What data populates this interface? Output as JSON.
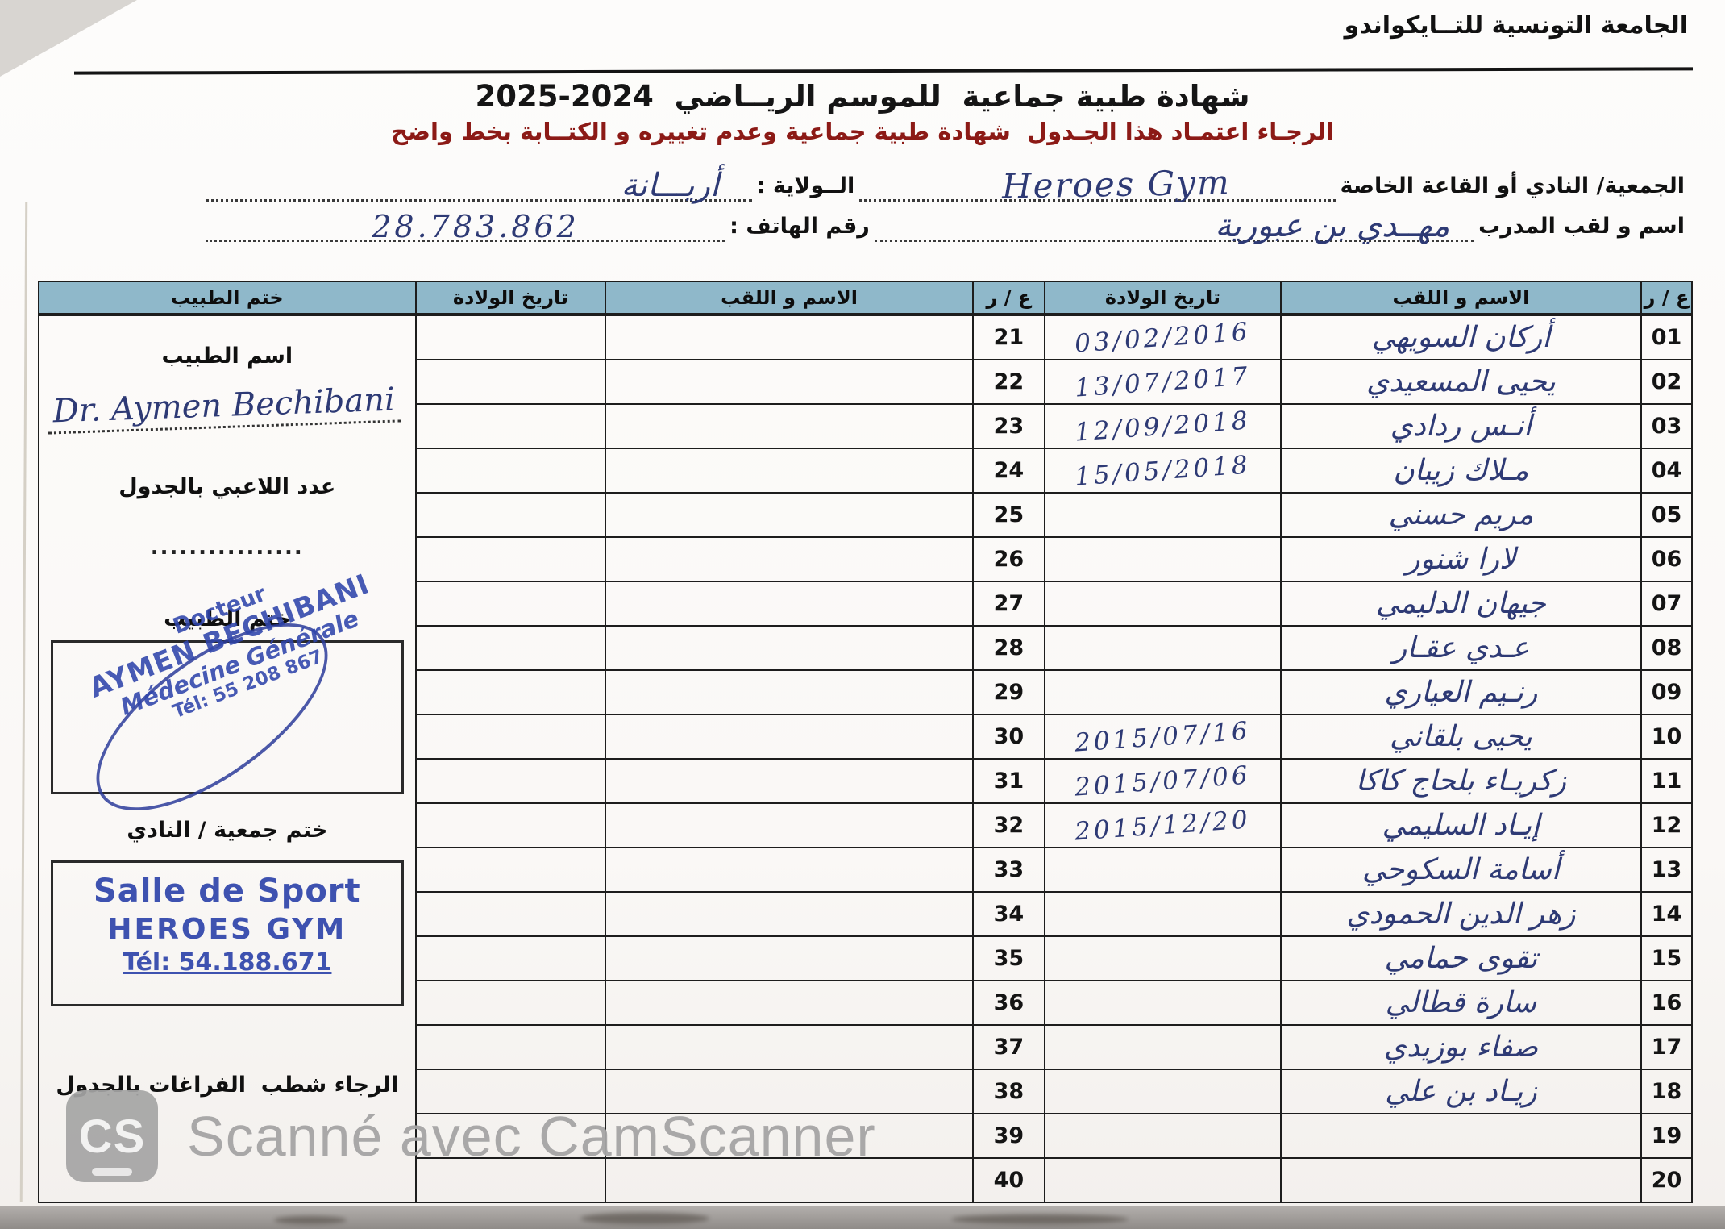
{
  "header": {
    "federation": "الجامعة التونسية للتــايكواندو"
  },
  "title": {
    "main": "شهادة طبية جماعية  للموسم الريــاضي  ",
    "season": "2025-2024",
    "notice": "الرجـاء اعتمـاد هذا الجـدول  شهادة طبية جماعية وعدم تغييره و الكتــابة بخط واضح"
  },
  "form": {
    "club_label": "الجمعية/ النادي أو القاعة الخاصة",
    "club_value": "Heroes  Gym",
    "wilaya_label": "الــولاية :",
    "wilaya_value": "أريـــانة",
    "coach_label": "اسم و لقب المدرب",
    "coach_value": "مهــدي بن عبورية",
    "phone_label": "رقم الهاتف :",
    "phone_value": "28.783.862"
  },
  "table": {
    "headers": {
      "num": "ع / ر",
      "name": "الاسم و اللقب",
      "dob": "تاريخ الولادة",
      "stamp": "ختم الطبيب"
    },
    "rows": [
      {
        "r_num": "01",
        "r_name": "أركان السويهي",
        "r_dob": "03/02/2016",
        "l_num": "21",
        "l_name": "",
        "l_dob": ""
      },
      {
        "r_num": "02",
        "r_name": "يحيى المسعيدي",
        "r_dob": "13/07/2017",
        "l_num": "22",
        "l_name": "",
        "l_dob": ""
      },
      {
        "r_num": "03",
        "r_name": "أنـس ردادي",
        "r_dob": "12/09/2018",
        "l_num": "23",
        "l_name": "",
        "l_dob": ""
      },
      {
        "r_num": "04",
        "r_name": "مـلاك زيبان",
        "r_dob": "15/05/2018",
        "l_num": "24",
        "l_name": "",
        "l_dob": ""
      },
      {
        "r_num": "05",
        "r_name": "مريم حسني",
        "r_dob": "",
        "l_num": "25",
        "l_name": "",
        "l_dob": ""
      },
      {
        "r_num": "06",
        "r_name": "لارا شنور",
        "r_dob": "",
        "l_num": "26",
        "l_name": "",
        "l_dob": ""
      },
      {
        "r_num": "07",
        "r_name": "جيهان الدليمي",
        "r_dob": "",
        "l_num": "27",
        "l_name": "",
        "l_dob": ""
      },
      {
        "r_num": "08",
        "r_name": "عـدي عقـار",
        "r_dob": "",
        "l_num": "28",
        "l_name": "",
        "l_dob": ""
      },
      {
        "r_num": "09",
        "r_name": "رنـيم العياري",
        "r_dob": "",
        "l_num": "29",
        "l_name": "",
        "l_dob": ""
      },
      {
        "r_num": "10",
        "r_name": "يحيى بلقاني",
        "r_dob": "2015/07/16",
        "l_num": "30",
        "l_name": "",
        "l_dob": ""
      },
      {
        "r_num": "11",
        "r_name": "زكريـاء بلحاج كاكا",
        "r_dob": "2015/07/06",
        "l_num": "31",
        "l_name": "",
        "l_dob": ""
      },
      {
        "r_num": "12",
        "r_name": "إيـاد السليمي",
        "r_dob": "2015/12/20",
        "l_num": "32",
        "l_name": "",
        "l_dob": ""
      },
      {
        "r_num": "13",
        "r_name": "أسامة السكوحي",
        "r_dob": "",
        "l_num": "33",
        "l_name": "",
        "l_dob": ""
      },
      {
        "r_num": "14",
        "r_name": "زهر الدين الحمودي",
        "r_dob": "",
        "l_num": "34",
        "l_name": "",
        "l_dob": ""
      },
      {
        "r_num": "15",
        "r_name": "تقوى حمامي",
        "r_dob": "",
        "l_num": "35",
        "l_name": "",
        "l_dob": ""
      },
      {
        "r_num": "16",
        "r_name": "سارة قطالي",
        "r_dob": "",
        "l_num": "36",
        "l_name": "",
        "l_dob": ""
      },
      {
        "r_num": "17",
        "r_name": "صفاء بوزيدي",
        "r_dob": "",
        "l_num": "37",
        "l_name": "",
        "l_dob": ""
      },
      {
        "r_num": "18",
        "r_name": "زيـاد بن علي",
        "r_dob": "",
        "l_num": "38",
        "l_name": "",
        "l_dob": ""
      },
      {
        "r_num": "19",
        "r_name": "",
        "r_dob": "",
        "l_num": "39",
        "l_name": "",
        "l_dob": ""
      },
      {
        "r_num": "20",
        "r_name": "",
        "r_dob": "",
        "l_num": "40",
        "l_name": "",
        "l_dob": ""
      }
    ]
  },
  "doctor_panel": {
    "doctor_name_label": "اسم الطبيب",
    "doctor_name_value": "Dr. Aymen Bechibani",
    "players_count_label": "عدد اللاعبي بالجدول",
    "players_count_dots": "................",
    "doctor_stamp_label": "ختم الطبيب",
    "doctor_stamp": {
      "line1": "Docteur",
      "line2": "AYMEN BECHIBANI",
      "line3": "Médecine Générale",
      "line4": "Tél: 55 208 867"
    },
    "club_stamp_label": "ختم جمعية / النادي",
    "club_stamp": {
      "line1": "Salle de Sport",
      "line2": "HEROES GYM",
      "line3": "Tél: 54.188.671"
    },
    "footnote": "الرجاء شطب  الفراغات بالجدول"
  },
  "watermark": {
    "logo": "CS",
    "text": "Scanné avec CamScanner"
  },
  "colors": {
    "ink_blue": "#2e3a75",
    "stamp_blue": "#2f45ab",
    "notice_maroon": "#8c1a16",
    "table_header_blue": "#8fb8ca",
    "watermark_gray": "#a5a5a5"
  }
}
